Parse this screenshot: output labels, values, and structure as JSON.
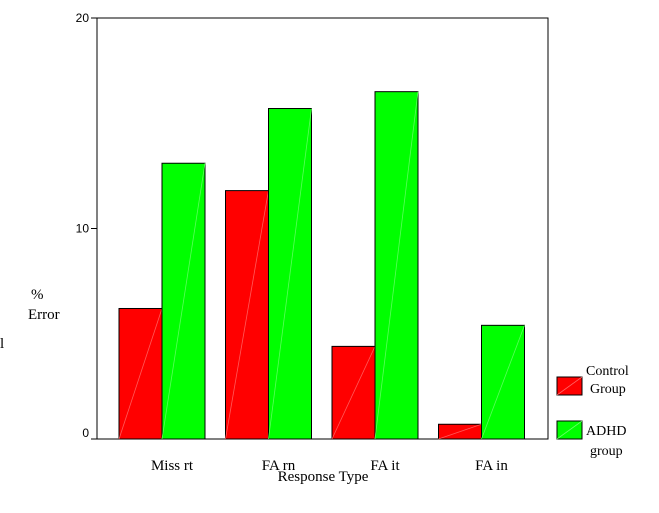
{
  "chart_data": {
    "type": "bar",
    "categories": [
      "Miss rt",
      "FA rn",
      "FA it",
      "FA in"
    ],
    "series": [
      {
        "name": "Control Group",
        "values": [
          6.2,
          11.8,
          4.4,
          0.7
        ],
        "color": "#ff0000"
      },
      {
        "name": "ADHD group",
        "values": [
          13.1,
          15.7,
          16.5,
          5.4
        ],
        "color": "#00ff00"
      }
    ],
    "ylabel_line1": "%",
    "ylabel_line2": "Error",
    "xlabel": "Response Type",
    "ylim": [
      0,
      20
    ],
    "yticks": [
      "0",
      "10",
      "20"
    ],
    "grid": false,
    "legend_position": "right",
    "legend": [
      {
        "line1": "Control",
        "line2": "Group"
      },
      {
        "line1": "ADHD",
        "line2": "group"
      }
    ],
    "stray_mark": "l"
  }
}
